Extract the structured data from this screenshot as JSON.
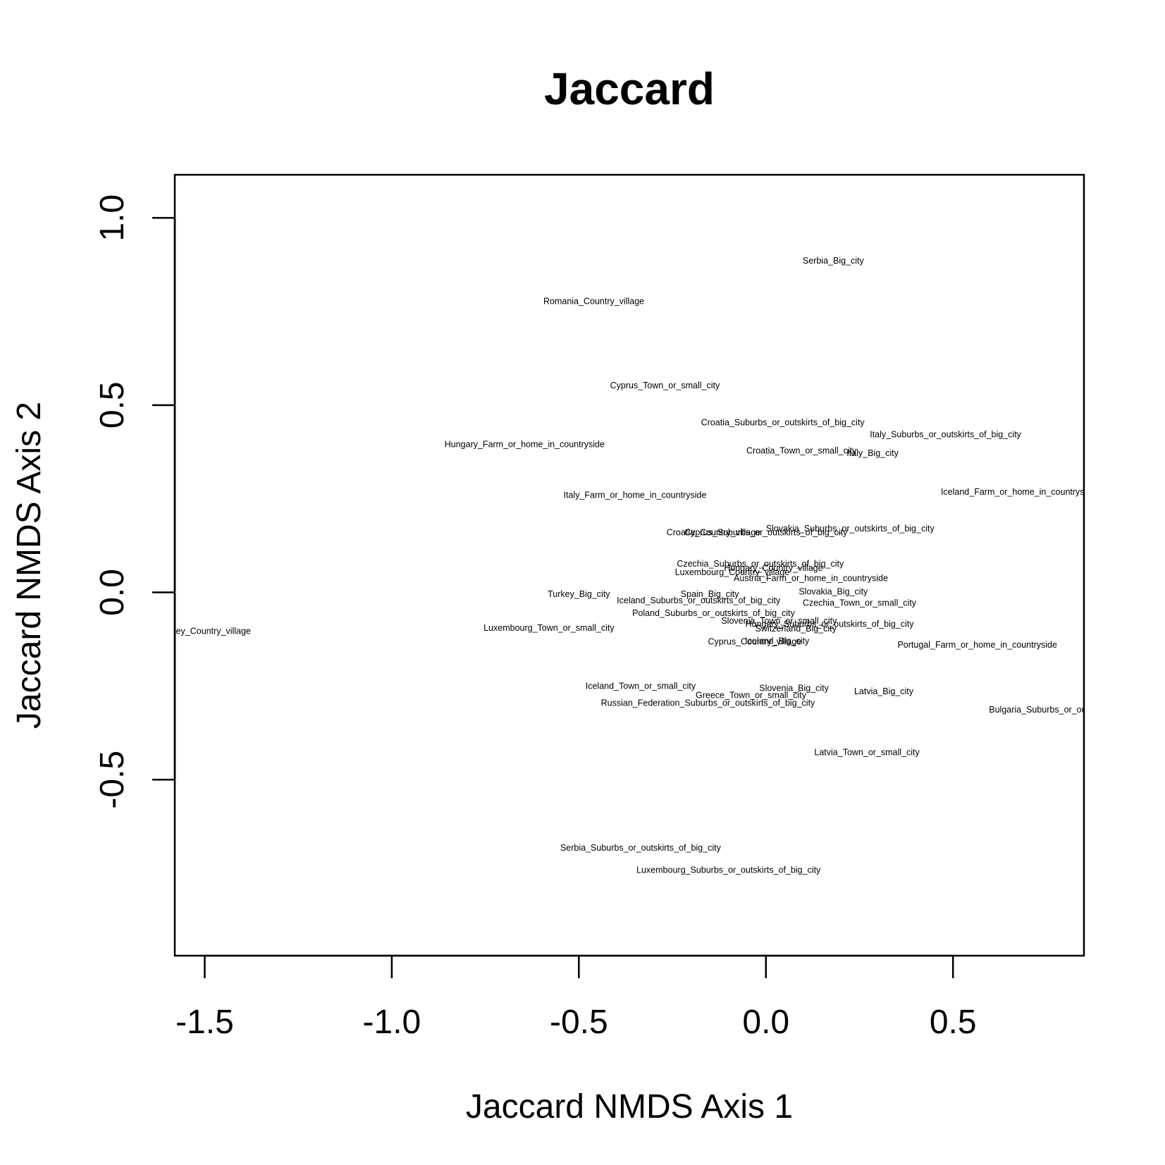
{
  "chart_data": {
    "type": "scatter",
    "title": "Jaccard",
    "xlabel": "Jaccard NMDS Axis 1",
    "ylabel": "Jaccard NMDS Axis 2",
    "xlim": [
      -1.58,
      0.85
    ],
    "ylim": [
      -0.97,
      1.115
    ],
    "xticks": [
      -1.5,
      -1.0,
      -0.5,
      0.0,
      0.5
    ],
    "xtick_labels": [
      "-1.5",
      "-1.0",
      "-0.5",
      "0.0",
      "0.5"
    ],
    "yticks": [
      -0.5,
      0.0,
      0.5,
      1.0
    ],
    "ytick_labels": [
      "-0.5",
      "0.0",
      "0.5",
      "1.0"
    ],
    "points": [
      {
        "label": "Serbia_Big_city",
        "x": 0.18,
        "y": 0.885
      },
      {
        "label": "Romania_Country_village",
        "x": -0.46,
        "y": 0.777
      },
      {
        "label": "Cyprus_Town_or_small_city",
        "x": -0.27,
        "y": 0.552
      },
      {
        "label": "Croatia_Suburbs_or_outskirts_of_big_city",
        "x": 0.045,
        "y": 0.454
      },
      {
        "label": "Italy_Suburbs_or_outskirts_of_big_city",
        "x": 0.48,
        "y": 0.422
      },
      {
        "label": "Hungary_Farm_or_home_in_countryside",
        "x": -0.645,
        "y": 0.395
      },
      {
        "label": "Croatia_Town_or_small_city",
        "x": 0.095,
        "y": 0.378
      },
      {
        "label": "Italy_Big_city",
        "x": 0.285,
        "y": 0.372
      },
      {
        "label": "Italy_Farm_or_home_in_countryside",
        "x": -0.35,
        "y": 0.26
      },
      {
        "label": "Iceland_Farm_or_home_in_countryside",
        "x": 0.675,
        "y": 0.268
      },
      {
        "label": "Croatia_Country_village",
        "x": -0.14,
        "y": 0.16
      },
      {
        "label": "Cyprus_Suburbs_or_outskirts_of_big_city",
        "x": 0.0,
        "y": 0.16
      },
      {
        "label": "Slovakia_Suburbs_or_outskirts_of_big_city",
        "x": 0.225,
        "y": 0.17
      },
      {
        "label": "Czechia_Suburbs_or_outskirts_of_big_city",
        "x": -0.015,
        "y": 0.076
      },
      {
        "label": "Luxembourg_Country_village",
        "x": -0.09,
        "y": 0.054
      },
      {
        "label": "Hungary_Country_village",
        "x": 0.02,
        "y": 0.065
      },
      {
        "label": "Austria_Farm_or_home_in_countryside",
        "x": 0.12,
        "y": 0.038
      },
      {
        "label": "Turkey_Big_city",
        "x": -0.5,
        "y": -0.005
      },
      {
        "label": "Spain_Big_city",
        "x": -0.15,
        "y": -0.005
      },
      {
        "label": "Iceland_Suburbs_or_outskirts_of_big_city",
        "x": -0.18,
        "y": -0.022
      },
      {
        "label": "Slovakia_Big_city",
        "x": 0.18,
        "y": 0.002
      },
      {
        "label": "Czechia_Town_or_small_city",
        "x": 0.25,
        "y": -0.028
      },
      {
        "label": "Poland_Suburbs_or_outskirts_of_big_city",
        "x": -0.14,
        "y": -0.055
      },
      {
        "label": "Slovenia_Town_or_small_city",
        "x": 0.035,
        "y": -0.076
      },
      {
        "label": "Hungary_Suburbs_or_outskirts_of_big_city",
        "x": 0.17,
        "y": -0.085
      },
      {
        "label": "Switzerland_Big_city",
        "x": 0.08,
        "y": -0.097
      },
      {
        "label": "Luxembourg_Town_or_small_city",
        "x": -0.58,
        "y": -0.095
      },
      {
        "label": "Turkey_Country_village",
        "x": -1.5,
        "y": -0.103
      },
      {
        "label": "Cyprus_Country_village",
        "x": -0.03,
        "y": -0.132
      },
      {
        "label": "Iceland_Big_city",
        "x": 0.03,
        "y": -0.13
      },
      {
        "label": "Portugal_Farm_or_home_in_countryside",
        "x": 0.565,
        "y": -0.14
      },
      {
        "label": "Iceland_Town_or_small_city",
        "x": -0.335,
        "y": -0.25
      },
      {
        "label": "Slovenia_Big_city",
        "x": 0.075,
        "y": -0.256
      },
      {
        "label": "Latvia_Big_city",
        "x": 0.315,
        "y": -0.264
      },
      {
        "label": "Greece_Town_or_small_city",
        "x": -0.04,
        "y": -0.275
      },
      {
        "label": "Russian_Federation_Suburbs_or_outskirts_of_big_city",
        "x": -0.155,
        "y": -0.295
      },
      {
        "label": "Bulgaria_Suburbs_or_outskirts_of_big_city",
        "x": 0.82,
        "y": -0.313
      },
      {
        "label": "Latvia_Town_or_small_city",
        "x": 0.27,
        "y": -0.427
      },
      {
        "label": "Serbia_Suburbs_or_outskirts_of_big_city",
        "x": -0.335,
        "y": -0.682
      },
      {
        "label": "Luxembourg_Suburbs_or_outskirts_of_big_city",
        "x": -0.1,
        "y": -0.741
      }
    ]
  }
}
